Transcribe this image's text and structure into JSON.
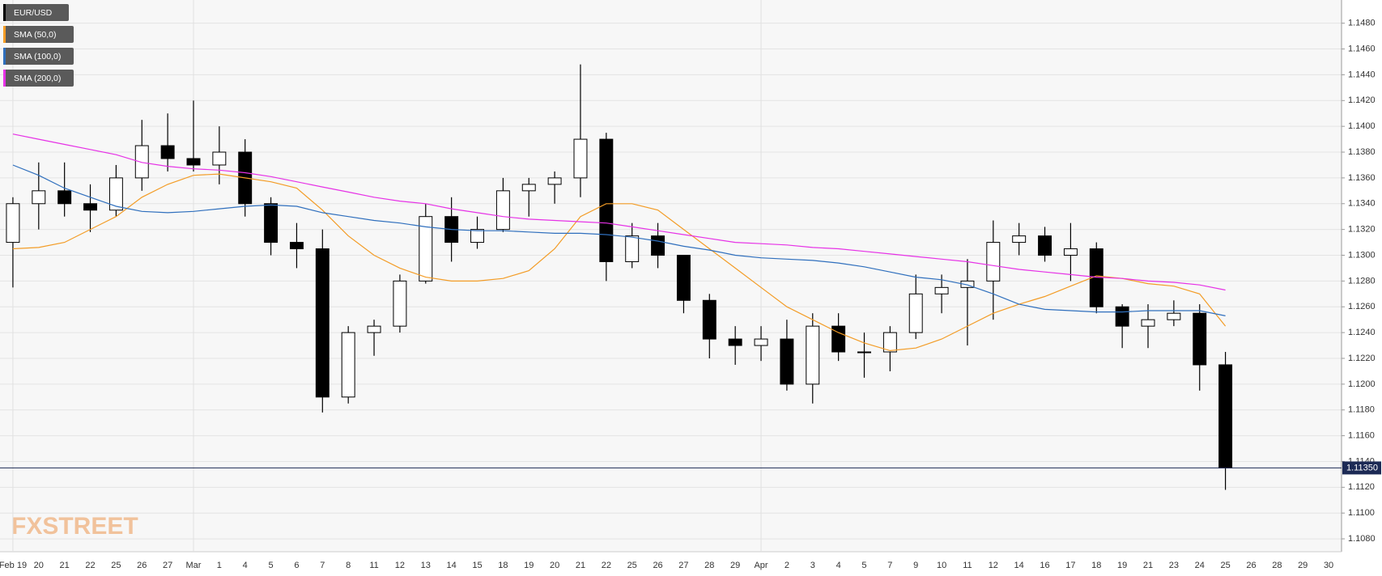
{
  "chart_data": {
    "type": "candlestick",
    "categories": [
      "Feb 19",
      "20",
      "21",
      "22",
      "25",
      "26",
      "27",
      "Mar",
      "1",
      "4",
      "5",
      "6",
      "7",
      "8",
      "11",
      "12",
      "13",
      "14",
      "15",
      "18",
      "19",
      "20",
      "21",
      "22",
      "25",
      "26",
      "27",
      "28",
      "29",
      "Apr",
      "2",
      "3",
      "4",
      "5",
      "7",
      "9",
      "10",
      "11",
      "12",
      "14",
      "16",
      "17",
      "18",
      "19",
      "21",
      "23",
      "24",
      "25",
      "26",
      "28",
      "29",
      "30"
    ],
    "series": [
      {
        "name": "EUR/USD",
        "color": "#000000",
        "up_color": "#ffffff",
        "open": [
          1.131,
          1.134,
          1.135,
          1.134,
          1.1335,
          1.136,
          1.1385,
          1.1375,
          1.137,
          1.138,
          1.134,
          1.131,
          1.1305,
          1.119,
          1.124,
          1.1245,
          1.128,
          1.133,
          1.131,
          1.132,
          1.135,
          1.1355,
          1.136,
          1.139,
          1.1295,
          1.1315,
          1.13,
          1.1265,
          1.1235,
          1.123,
          1.1235,
          1.12,
          1.1245,
          1.1225,
          1.1225,
          1.124,
          1.127,
          1.1275,
          1.128,
          1.131,
          1.1315,
          1.13,
          1.1305,
          1.126,
          1.1245,
          1.125,
          1.1255,
          1.1215,
          null,
          null,
          null,
          null
        ],
        "high": [
          1.1345,
          1.1372,
          1.1372,
          1.1355,
          1.137,
          1.1405,
          1.141,
          1.142,
          1.14,
          1.139,
          1.1345,
          1.1325,
          1.132,
          1.1245,
          1.125,
          1.1285,
          1.134,
          1.1345,
          1.133,
          1.136,
          1.136,
          1.1365,
          1.1448,
          1.1395,
          1.1325,
          1.1325,
          1.13,
          1.127,
          1.1245,
          1.1245,
          1.125,
          1.1255,
          1.1255,
          1.124,
          1.1245,
          1.1285,
          1.1285,
          1.1297,
          1.1327,
          1.1325,
          1.1322,
          1.1325,
          1.131,
          1.1262,
          1.1262,
          1.1265,
          1.1262,
          1.1225,
          null,
          null,
          null,
          null
        ],
        "low": [
          1.1275,
          1.132,
          1.133,
          1.1318,
          1.133,
          1.135,
          1.1365,
          1.1365,
          1.1355,
          1.133,
          1.13,
          1.129,
          1.1178,
          1.1185,
          1.1222,
          1.124,
          1.1278,
          1.1295,
          1.1305,
          1.1318,
          1.133,
          1.134,
          1.1345,
          1.128,
          1.129,
          1.129,
          1.1255,
          1.122,
          1.1215,
          1.1218,
          1.1195,
          1.1185,
          1.1218,
          1.1205,
          1.121,
          1.1235,
          1.1255,
          1.123,
          1.125,
          1.13,
          1.1295,
          1.128,
          1.1255,
          1.1228,
          1.1228,
          1.1245,
          1.1195,
          1.1118,
          null,
          null,
          null,
          null
        ],
        "close": [
          1.134,
          1.135,
          1.134,
          1.1335,
          1.136,
          1.1385,
          1.1375,
          1.137,
          1.138,
          1.134,
          1.131,
          1.1305,
          1.119,
          1.124,
          1.1245,
          1.128,
          1.133,
          1.131,
          1.132,
          1.135,
          1.1355,
          1.136,
          1.139,
          1.1295,
          1.1315,
          1.13,
          1.1265,
          1.1235,
          1.123,
          1.1235,
          1.12,
          1.1245,
          1.1225,
          1.1225,
          1.124,
          1.127,
          1.1275,
          1.128,
          1.131,
          1.1315,
          1.13,
          1.1305,
          1.126,
          1.1245,
          1.125,
          1.1255,
          1.1215,
          1.1135,
          null,
          null,
          null,
          null
        ]
      },
      {
        "name": "SMA (50,0)",
        "color": "#f39c26",
        "values": [
          1.1305,
          1.1306,
          1.131,
          1.132,
          1.133,
          1.1345,
          1.1355,
          1.1362,
          1.1363,
          1.136,
          1.1357,
          1.1352,
          1.1335,
          1.1315,
          1.13,
          1.129,
          1.1283,
          1.128,
          1.128,
          1.1282,
          1.1288,
          1.1305,
          1.133,
          1.134,
          1.134,
          1.1335,
          1.132,
          1.1305,
          1.129,
          1.1275,
          1.126,
          1.125,
          1.124,
          1.1232,
          1.1226,
          1.1228,
          1.1235,
          1.1245,
          1.1255,
          1.1262,
          1.1268,
          1.1276,
          1.1284,
          1.1282,
          1.1278,
          1.1276,
          1.127,
          1.1245,
          null,
          null,
          null,
          null
        ]
      },
      {
        "name": "SMA (100,0)",
        "color": "#2f6fbd",
        "values": [
          1.137,
          1.1362,
          1.1352,
          1.1345,
          1.1338,
          1.1334,
          1.1333,
          1.1334,
          1.1336,
          1.1338,
          1.1339,
          1.1338,
          1.1333,
          1.133,
          1.1327,
          1.1325,
          1.1322,
          1.132,
          1.1319,
          1.1319,
          1.1318,
          1.1317,
          1.1317,
          1.1316,
          1.1314,
          1.1311,
          1.1307,
          1.1304,
          1.13,
          1.1298,
          1.1297,
          1.1296,
          1.1294,
          1.1291,
          1.1287,
          1.1283,
          1.1281,
          1.1277,
          1.127,
          1.1262,
          1.1258,
          1.1257,
          1.1256,
          1.1256,
          1.1257,
          1.1257,
          1.1257,
          1.1253,
          null,
          null,
          null,
          null
        ]
      },
      {
        "name": "SMA (200,0)",
        "color": "#e632e6",
        "values": [
          1.1394,
          1.139,
          1.1386,
          1.1382,
          1.1378,
          1.1372,
          1.1369,
          1.1367,
          1.1366,
          1.1364,
          1.1361,
          1.1357,
          1.1353,
          1.1349,
          1.1345,
          1.1342,
          1.134,
          1.1336,
          1.1333,
          1.133,
          1.1328,
          1.1327,
          1.1326,
          1.1325,
          1.1322,
          1.1319,
          1.1316,
          1.1313,
          1.131,
          1.1309,
          1.1308,
          1.1306,
          1.1305,
          1.1303,
          1.1301,
          1.1299,
          1.1297,
          1.1295,
          1.1292,
          1.1289,
          1.1287,
          1.1285,
          1.1283,
          1.1282,
          1.128,
          1.1279,
          1.1277,
          1.1273,
          null,
          null,
          null,
          null
        ]
      }
    ],
    "ylim": [
      1.107,
      1.1498
    ],
    "yticks": [
      {
        "value": 1.108,
        "label": "1.1080"
      },
      {
        "value": 1.11,
        "label": "1.1100"
      },
      {
        "value": 1.112,
        "label": "1.1120"
      },
      {
        "value": 1.114,
        "label": "1.1140"
      },
      {
        "value": 1.116,
        "label": "1.1160"
      },
      {
        "value": 1.118,
        "label": "1.1180"
      },
      {
        "value": 1.12,
        "label": "1.1200"
      },
      {
        "value": 1.122,
        "label": "1.1220"
      },
      {
        "value": 1.124,
        "label": "1.1240"
      },
      {
        "value": 1.126,
        "label": "1.1260"
      },
      {
        "value": 1.128,
        "label": "1.1280"
      },
      {
        "value": 1.13,
        "label": "1.1300"
      },
      {
        "value": 1.132,
        "label": "1.1320"
      },
      {
        "value": 1.134,
        "label": "1.1340"
      },
      {
        "value": 1.136,
        "label": "1.1360"
      },
      {
        "value": 1.138,
        "label": "1.1380"
      },
      {
        "value": 1.14,
        "label": "1.1400"
      },
      {
        "value": 1.142,
        "label": "1.1420"
      },
      {
        "value": 1.144,
        "label": "1.1440"
      },
      {
        "value": 1.146,
        "label": "1.1460"
      },
      {
        "value": 1.148,
        "label": "1.1480"
      }
    ],
    "last_price": {
      "value": 1.1135,
      "label": "1.11350"
    },
    "grid": true,
    "legend": "top-left",
    "watermark": "FXSTREET"
  }
}
